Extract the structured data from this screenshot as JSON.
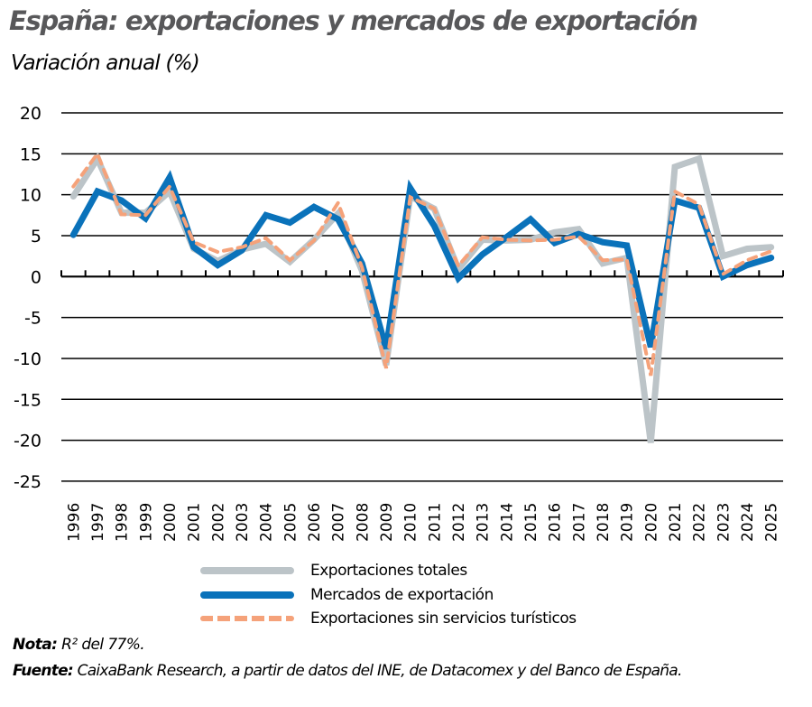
{
  "header": {
    "title": "España: exportaciones y mercados de exportación",
    "subtitle": "Variación anual (%)"
  },
  "legend": [
    {
      "label": "Exportaciones totales",
      "color": "#bcc4c8",
      "style": "solid"
    },
    {
      "label": "Mercados de exportación",
      "color": "#0a72ba",
      "style": "solid"
    },
    {
      "label": "Exportaciones sin servicios turísticos",
      "color": "#f5a27a",
      "style": "dashed"
    }
  ],
  "footer": {
    "note_label": "Nota:",
    "note_text": " R² del 77%.",
    "source_label": "Fuente:",
    "source_text": " CaixaBank Research, a partir de datos del INE, de Datacomex y del Banco de España."
  },
  "chart_data": {
    "type": "line",
    "title": "España: exportaciones y mercados de exportación",
    "subtitle": "Variación anual (%)",
    "xlabel": "",
    "ylabel": "Variación anual (%)",
    "ylim": [
      -25,
      20
    ],
    "yticks": [
      20,
      15,
      10,
      5,
      0,
      -5,
      -10,
      -15,
      -20,
      -25
    ],
    "grid": true,
    "legend_position": "bottom",
    "categories": [
      "1996",
      "1997",
      "1998",
      "1999",
      "2000",
      "2001",
      "2002",
      "2003",
      "2004",
      "2005",
      "2006",
      "2007",
      "2008",
      "2009",
      "2010",
      "2011",
      "2012",
      "2013",
      "2014",
      "2015",
      "2016",
      "2017",
      "2018",
      "2019",
      "2020",
      "2021",
      "2022",
      "2023",
      "2024",
      "2025"
    ],
    "series": [
      {
        "name": "Exportaciones totales",
        "color": "#bcc4c8",
        "dashed": false,
        "width": 7,
        "values": [
          9.8,
          14.4,
          7.8,
          7.8,
          10.4,
          3.4,
          1.9,
          3.3,
          4.0,
          1.8,
          4.5,
          7.7,
          0.7,
          -10.8,
          9.8,
          8.3,
          0.9,
          4.5,
          4.4,
          4.5,
          5.4,
          5.8,
          1.6,
          2.3,
          -20.3,
          13.4,
          14.4,
          2.5,
          3.4,
          3.6
        ]
      },
      {
        "name": "Mercados de exportación",
        "color": "#0a72ba",
        "dashed": false,
        "width": 7,
        "values": [
          5.1,
          10.4,
          9.3,
          7.1,
          12.1,
          3.6,
          1.4,
          3.2,
          7.5,
          6.6,
          8.5,
          7.0,
          1.6,
          -8.8,
          10.8,
          6.2,
          -0.2,
          2.7,
          4.8,
          7.0,
          4.1,
          5.2,
          4.2,
          3.8,
          -8.6,
          9.3,
          8.4,
          0.0,
          1.4,
          2.3
        ]
      },
      {
        "name": "Exportaciones sin servicios turísticos",
        "color": "#f5a27a",
        "dashed": true,
        "width": 4,
        "values": [
          11.0,
          15.0,
          7.6,
          7.5,
          11.0,
          4.2,
          3.0,
          3.6,
          4.7,
          2.0,
          4.4,
          9.0,
          1.1,
          -11.2,
          9.7,
          8.3,
          1.3,
          4.8,
          4.5,
          4.4,
          4.5,
          4.9,
          2.0,
          2.1,
          -12.1,
          10.4,
          8.8,
          0.3,
          2.0,
          3.1
        ]
      }
    ]
  }
}
